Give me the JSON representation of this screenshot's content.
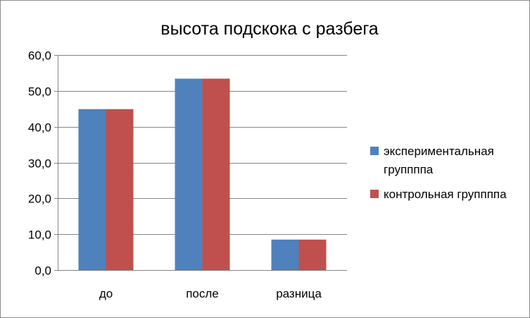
{
  "chart_data": {
    "type": "bar",
    "title": "высота подскока с разбега",
    "categories": [
      "до",
      "после",
      "разница"
    ],
    "series": [
      {
        "name": "экспериментальная группппа",
        "values": [
          44.9,
          53.4,
          8.5
        ],
        "color": "#4F81BD"
      },
      {
        "name": "контрольная группппа",
        "values": [
          44.9,
          53.4,
          8.5
        ],
        "color": "#C0504D"
      }
    ],
    "legend_lines": [
      [
        "экспериментальная",
        "группппа"
      ],
      [
        "контрольная группппа"
      ]
    ],
    "y_ticks": [
      "0,0",
      "10,0",
      "20,0",
      "30,0",
      "40,0",
      "50,0",
      "60,0"
    ],
    "ylim": [
      0,
      60
    ],
    "xlabel": "",
    "ylabel": "",
    "grid": true,
    "legend_position": "right"
  }
}
